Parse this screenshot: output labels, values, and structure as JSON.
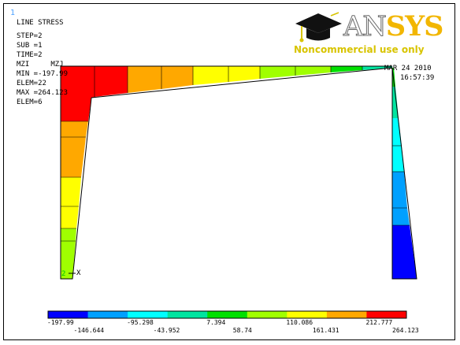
{
  "window_number": "1",
  "info_lines": [
    "LINE STRESS",
    "STEP=2",
    "SUB =1",
    "TIME=2",
    "MZI     MZJ",
    "MIN =-197.99",
    "ELEM=22",
    "MAX =264.123",
    "ELEM=6"
  ],
  "date": "MAR 24 2010",
  "time": "16:57:39",
  "logo": {
    "an": "AN",
    "sys": "SYS",
    "subtitle": "Noncommercial use only"
  },
  "axis": {
    "origin": "2",
    "x": "X"
  },
  "legend": {
    "colors": [
      "#0000ff",
      "#00a0ff",
      "#00ffff",
      "#00e5a0",
      "#00e000",
      "#a0ff00",
      "#ffff00",
      "#ffa800",
      "#ff0000"
    ],
    "labels_top": [
      "-197.99",
      "-95.298",
      "7.394",
      "110.086",
      "212.777"
    ],
    "labels_bottom": [
      "-146.644",
      "-43.952",
      "58.74",
      "161.431",
      "264.123"
    ]
  },
  "colors": {
    "legend_frame": "#000000"
  }
}
